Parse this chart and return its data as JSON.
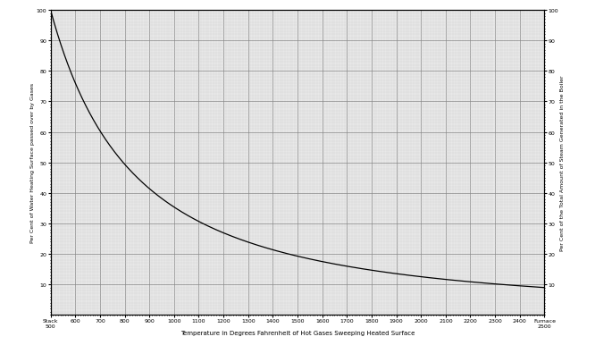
{
  "xlabel": "Temperature in Degrees Fahrenheit of Hot Gases Sweeping Heated Surface",
  "ylabel_left": "Per Cent of Water Heating Surface passed over by Gases",
  "ylabel_right": "Per Cent of the Total Amount of Steam Generated in the Boiler",
  "x_start": 500,
  "x_end": 2500,
  "x_ticks": [
    500,
    600,
    700,
    800,
    900,
    1000,
    1100,
    1200,
    1300,
    1400,
    1500,
    1600,
    1700,
    1800,
    1900,
    2000,
    2100,
    2200,
    2300,
    2400,
    2500
  ],
  "y_left_ticks": [
    10,
    20,
    30,
    40,
    50,
    60,
    70,
    80,
    90,
    100
  ],
  "y_right_ticks": [
    10,
    20,
    30,
    40,
    50,
    60,
    70,
    80,
    90,
    100
  ],
  "curve_color": "#000000",
  "major_grid_color": "#888888",
  "minor_grid_color": "#cccccc",
  "bg_color": "#e8e8e8",
  "fig_bg_color": "#ffffff"
}
